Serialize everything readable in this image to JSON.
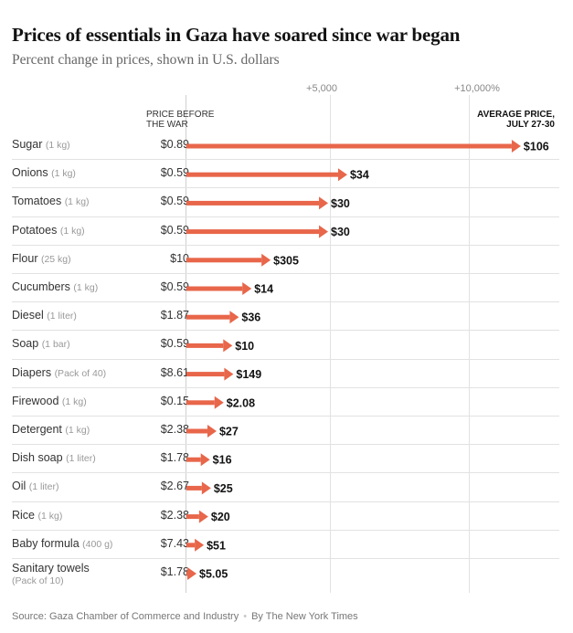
{
  "title": "Prices of essentials in Gaza have soared since war began",
  "subtitle": "Percent change in prices, shown in U.S. dollars",
  "column_headers": {
    "before_line1": "Price before",
    "before_line2": "the war",
    "after_line1": "Average price,",
    "after_line2": "July 27-30"
  },
  "source": "Source: Gaza Chamber of Commerce and Industry",
  "credit": "By The New York Times",
  "colors": {
    "bar": "#e8664a",
    "grid": "#e2e2e2"
  },
  "chart_data": {
    "type": "bar",
    "orientation": "horizontal",
    "title": "Prices of essentials in Gaza have soared since war began",
    "subtitle": "Percent change in prices, shown in U.S. dollars",
    "x_ticks": [
      {
        "value": 5000,
        "label": "+5,000"
      },
      {
        "value": 10000,
        "label": "+10,000%"
      }
    ],
    "xlim": [
      0,
      11600
    ],
    "grid": true,
    "items": [
      {
        "name": "Sugar",
        "unit": "(1 kg)",
        "before": "$0.89",
        "after": "$106",
        "before_value": 0.89,
        "after_value": 106
      },
      {
        "name": "Onions",
        "unit": "(1 kg)",
        "before": "$0.59",
        "after": "$34",
        "before_value": 0.59,
        "after_value": 34
      },
      {
        "name": "Tomatoes",
        "unit": "(1 kg)",
        "before": "$0.59",
        "after": "$30",
        "before_value": 0.59,
        "after_value": 30
      },
      {
        "name": "Potatoes",
        "unit": "(1 kg)",
        "before": "$0.59",
        "after": "$30",
        "before_value": 0.59,
        "after_value": 30
      },
      {
        "name": "Flour",
        "unit": "(25 kg)",
        "before": "$10",
        "after": "$305",
        "before_value": 10,
        "after_value": 305
      },
      {
        "name": "Cucumbers",
        "unit": "(1 kg)",
        "before": "$0.59",
        "after": "$14",
        "before_value": 0.59,
        "after_value": 14
      },
      {
        "name": "Diesel",
        "unit": "(1 liter)",
        "before": "$1.87",
        "after": "$36",
        "before_value": 1.87,
        "after_value": 36
      },
      {
        "name": "Soap",
        "unit": "(1 bar)",
        "before": "$0.59",
        "after": "$10",
        "before_value": 0.59,
        "after_value": 10
      },
      {
        "name": "Diapers",
        "unit": "(Pack of 40)",
        "before": "$8.61",
        "after": "$149",
        "before_value": 8.61,
        "after_value": 149
      },
      {
        "name": "Firewood",
        "unit": "(1 kg)",
        "before": "$0.15",
        "after": "$2.08",
        "before_value": 0.15,
        "after_value": 2.08
      },
      {
        "name": "Detergent",
        "unit": "(1 kg)",
        "before": "$2.38",
        "after": "$27",
        "before_value": 2.38,
        "after_value": 27
      },
      {
        "name": "Dish soap",
        "unit": "(1 liter)",
        "before": "$1.78",
        "after": "$16",
        "before_value": 1.78,
        "after_value": 16
      },
      {
        "name": "Oil",
        "unit": "(1 liter)",
        "before": "$2.67",
        "after": "$25",
        "before_value": 2.67,
        "after_value": 25
      },
      {
        "name": "Rice",
        "unit": "(1 kg)",
        "before": "$2.38",
        "after": "$20",
        "before_value": 2.38,
        "after_value": 20
      },
      {
        "name": "Baby formula",
        "unit": "(400 g)",
        "before": "$7.43",
        "after": "$51",
        "before_value": 7.43,
        "after_value": 51
      },
      {
        "name": "Sanitary towels",
        "unit": "(Pack of 10)",
        "before": "$1.78",
        "after": "$5.05",
        "before_value": 1.78,
        "after_value": 5.05
      }
    ]
  }
}
